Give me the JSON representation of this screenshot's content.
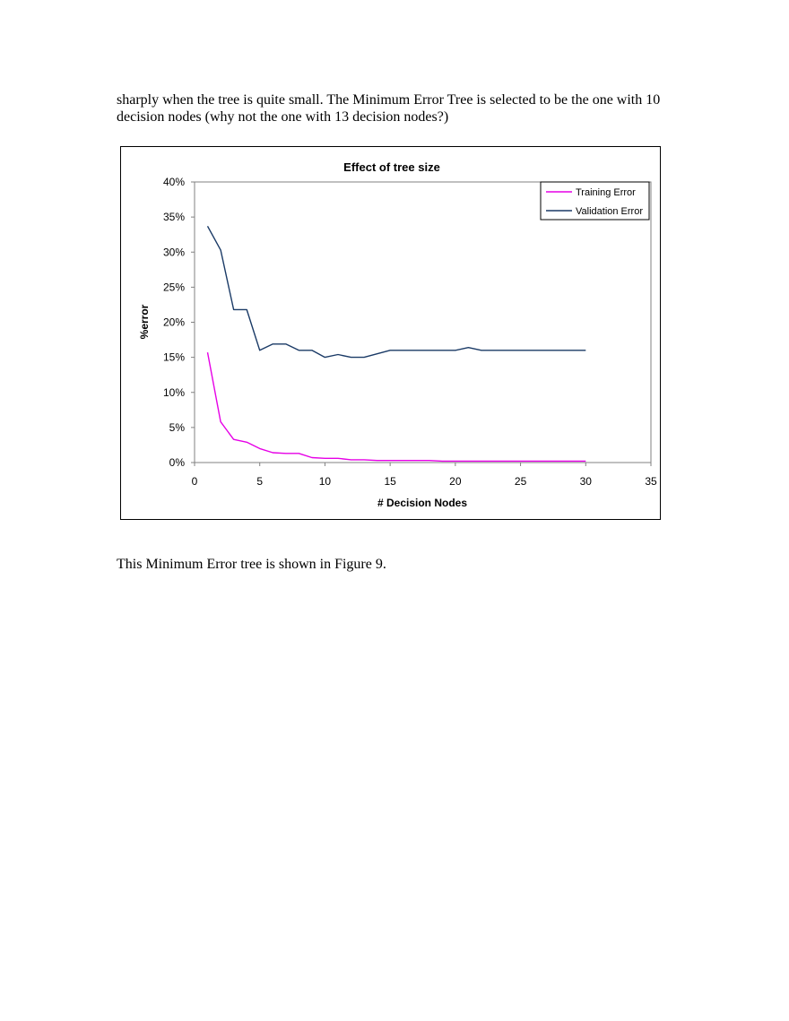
{
  "text": {
    "para_top": "sharply when the tree is quite small. The Minimum Error Tree is selected to be the one with 10 decision nodes (why not the one with 13 decision nodes?)",
    "para_bottom": "This Minimum Error tree is shown in Figure 9."
  },
  "chart_data": {
    "type": "line",
    "title": "Effect of tree size",
    "xlabel": "# Decision Nodes",
    "ylabel": "%error",
    "xlim": [
      0,
      35
    ],
    "ylim": [
      0,
      0.4
    ],
    "x_ticks": [
      0,
      5,
      10,
      15,
      20,
      25,
      30,
      35
    ],
    "y_ticks": [
      0,
      0.05,
      0.1,
      0.15,
      0.2,
      0.25,
      0.3,
      0.35,
      0.4
    ],
    "y_tick_labels": [
      "0%",
      "5%",
      "10%",
      "15%",
      "20%",
      "25%",
      "30%",
      "35%",
      "40%"
    ],
    "grid": false,
    "legend": "top-right",
    "x": [
      1,
      2,
      3,
      4,
      5,
      6,
      7,
      8,
      9,
      10,
      11,
      12,
      13,
      14,
      15,
      16,
      17,
      18,
      19,
      20,
      21,
      22,
      23,
      24,
      25,
      26,
      27,
      28,
      29,
      30
    ],
    "series": [
      {
        "name": "Training Error",
        "color": "#e600e6",
        "values": [
          0.157,
          0.058,
          0.033,
          0.029,
          0.02,
          0.014,
          0.013,
          0.013,
          0.007,
          0.006,
          0.006,
          0.004,
          0.004,
          0.003,
          0.003,
          0.003,
          0.003,
          0.003,
          0.002,
          0.002,
          0.002,
          0.002,
          0.002,
          0.002,
          0.002,
          0.002,
          0.002,
          0.002,
          0.002,
          0.002
        ]
      },
      {
        "name": "Validation Error",
        "color": "#1a3a66",
        "values": [
          0.337,
          0.303,
          0.218,
          0.218,
          0.16,
          0.169,
          0.169,
          0.16,
          0.16,
          0.15,
          0.154,
          0.15,
          0.15,
          0.155,
          0.16,
          0.16,
          0.16,
          0.16,
          0.16,
          0.16,
          0.164,
          0.16,
          0.16,
          0.16,
          0.16,
          0.16,
          0.16,
          0.16,
          0.16,
          0.16
        ]
      }
    ]
  }
}
